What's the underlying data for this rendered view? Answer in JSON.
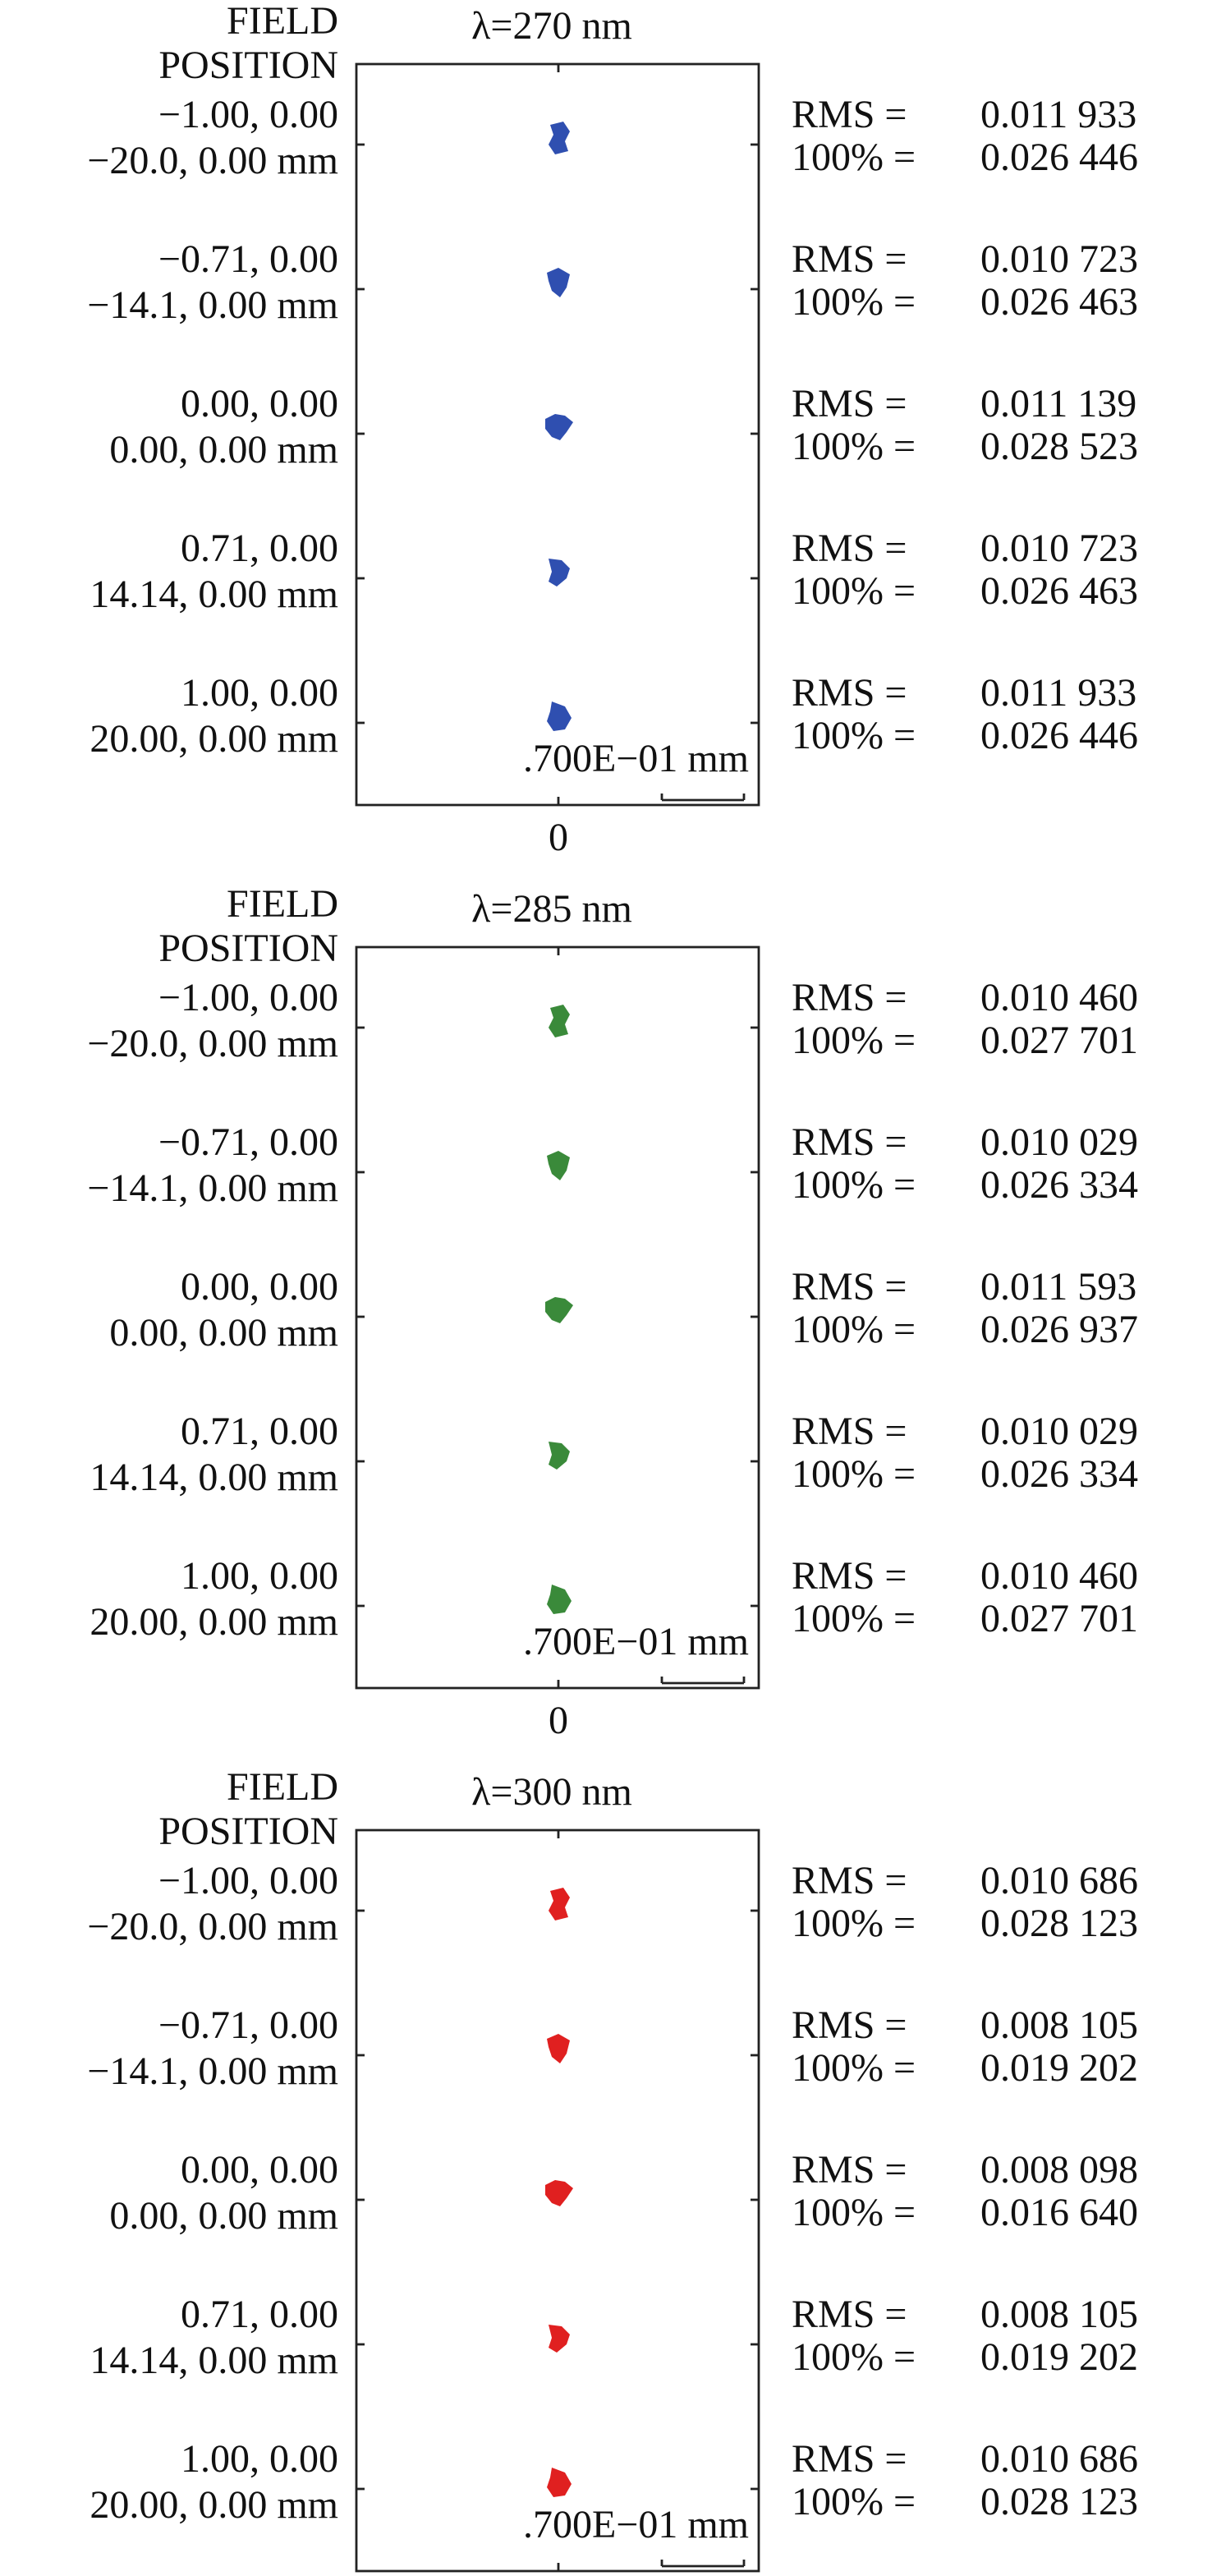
{
  "panels": [
    {
      "title": "λ=270 nm",
      "header": [
        "FIELD",
        "POSITION"
      ],
      "color": "#2f4fb0",
      "fields": [
        {
          "position": "−1.00, 0.00",
          "coords": "−20.0, 0.00 mm",
          "rms_label": "RMS =",
          "rms": "0.011 933",
          "pct_label": "100% =",
          "pct": "0.026 446"
        },
        {
          "position": "−0.71, 0.00",
          "coords": "−14.1, 0.00 mm",
          "rms_label": "RMS =",
          "rms": "0.010 723",
          "pct_label": "100% =",
          "pct": "0.026 463"
        },
        {
          "position": "0.00, 0.00",
          "coords": "0.00, 0.00 mm",
          "rms_label": "RMS =",
          "rms": "0.011 139",
          "pct_label": "100% =",
          "pct": "0.028 523"
        },
        {
          "position": "0.71, 0.00",
          "coords": "14.14, 0.00 mm",
          "rms_label": "RMS =",
          "rms": "0.010 723",
          "pct_label": "100% =",
          "pct": "0.026 463"
        },
        {
          "position": "1.00, 0.00",
          "coords": "20.00, 0.00 mm",
          "rms_label": "RMS =",
          "rms": "0.011 933",
          "pct_label": "100% =",
          "pct": "0.026 446"
        }
      ],
      "scale_label": ".700E−01 mm",
      "axis_label": "0"
    },
    {
      "title": "λ=285 nm",
      "header": [
        "FIELD",
        "POSITION"
      ],
      "color": "#3a8a3a",
      "fields": [
        {
          "position": "−1.00, 0.00",
          "coords": "−20.0, 0.00 mm",
          "rms_label": "RMS =",
          "rms": "0.010 460",
          "pct_label": "100% =",
          "pct": "0.027 701"
        },
        {
          "position": "−0.71, 0.00",
          "coords": "−14.1, 0.00 mm",
          "rms_label": "RMS =",
          "rms": "0.010 029",
          "pct_label": "100% =",
          "pct": "0.026 334"
        },
        {
          "position": "0.00, 0.00",
          "coords": "0.00, 0.00 mm",
          "rms_label": "RMS =",
          "rms": "0.011 593",
          "pct_label": "100% =",
          "pct": "0.026 937"
        },
        {
          "position": "0.71, 0.00",
          "coords": "14.14, 0.00 mm",
          "rms_label": "RMS =",
          "rms": "0.010 029",
          "pct_label": "100% =",
          "pct": "0.026 334"
        },
        {
          "position": "1.00, 0.00",
          "coords": "20.00, 0.00 mm",
          "rms_label": "RMS =",
          "rms": "0.010 460",
          "pct_label": "100% =",
          "pct": "0.027 701"
        }
      ],
      "scale_label": ".700E−01 mm",
      "axis_label": "0"
    },
    {
      "title": "λ=300 nm",
      "header": [
        "FIELD",
        "POSITION"
      ],
      "color": "#e02020",
      "fields": [
        {
          "position": "−1.00, 0.00",
          "coords": "−20.0, 0.00 mm",
          "rms_label": "RMS =",
          "rms": "0.010 686",
          "pct_label": "100% =",
          "pct": "0.028 123"
        },
        {
          "position": "−0.71, 0.00",
          "coords": "−14.1, 0.00 mm",
          "rms_label": "RMS =",
          "rms": "0.008 105",
          "pct_label": "100% =",
          "pct": "0.019 202"
        },
        {
          "position": "0.00, 0.00",
          "coords": "0.00, 0.00 mm",
          "rms_label": "RMS =",
          "rms": "0.008 098",
          "pct_label": "100% =",
          "pct": "0.016 640"
        },
        {
          "position": "0.71, 0.00",
          "coords": "14.14, 0.00 mm",
          "rms_label": "RMS =",
          "rms": "0.008 105",
          "pct_label": "100% =",
          "pct": "0.019 202"
        },
        {
          "position": "1.00, 0.00",
          "coords": "20.00, 0.00 mm",
          "rms_label": "RMS =",
          "rms": "0.010 686",
          "pct_label": "100% =",
          "pct": "0.028 123"
        }
      ],
      "scale_label": ".700E−01 mm"
    }
  ]
}
